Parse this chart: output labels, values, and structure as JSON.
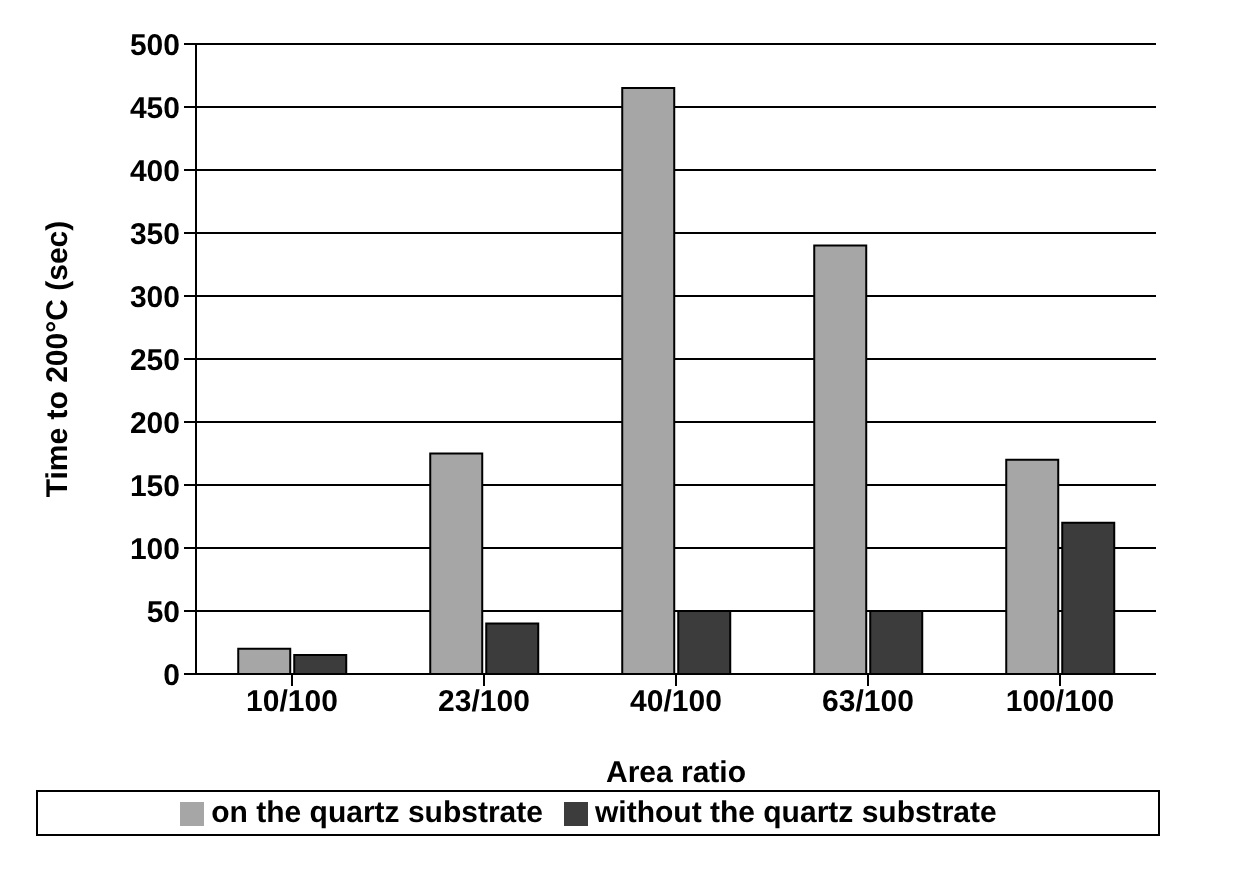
{
  "chart_data": {
    "type": "bar",
    "xlabel": "Area ratio",
    "ylabel": "Time to 200°C  (sec)",
    "categories": [
      "10/100",
      "23/100",
      "40/100",
      "63/100",
      "100/100"
    ],
    "series": [
      {
        "name": "on the quartz substrate",
        "color": "#a6a6a6",
        "values": [
          20,
          175,
          465,
          340,
          170
        ]
      },
      {
        "name": "without the quartz substrate",
        "color": "#3c3c3c",
        "values": [
          15,
          40,
          50,
          50,
          120
        ]
      }
    ],
    "ylim": [
      0,
      500
    ],
    "yticks": [
      0,
      50,
      100,
      150,
      200,
      250,
      300,
      350,
      400,
      450,
      500
    ],
    "grid": "y",
    "legend": "bottom"
  }
}
